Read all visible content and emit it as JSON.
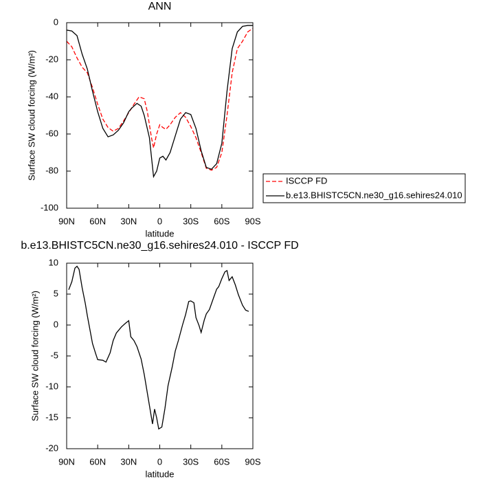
{
  "chart_data": [
    {
      "type": "line",
      "title": "ANN",
      "xlabel": "latitude",
      "ylabel": "Surface SW cloud forcing (W/m²)",
      "xlim": [
        90,
        -90
      ],
      "ylim": [
        -100,
        0
      ],
      "xticks": [
        {
          "value": 90,
          "label": "90N"
        },
        {
          "value": 60,
          "label": "60N"
        },
        {
          "value": 30,
          "label": "30N"
        },
        0,
        {
          "value": -30,
          "label": "30S"
        },
        {
          "value": -60,
          "label": "60S"
        },
        {
          "value": -90,
          "label": "90S"
        }
      ],
      "yticks": [
        -100,
        -80,
        -60,
        -40,
        -20,
        0
      ],
      "legend": "right",
      "series": [
        {
          "name": "ISCCP FD",
          "color": "#ff0000",
          "line_style": "dashed",
          "x": [
            90,
            85,
            80,
            75,
            70,
            65,
            60,
            55,
            50,
            45,
            40,
            35,
            30,
            25,
            20,
            15,
            12,
            8,
            6,
            3,
            0,
            -3,
            -6,
            -10,
            -15,
            -20,
            -25,
            -30,
            -35,
            -40,
            -45,
            -50,
            -55,
            -60,
            -65,
            -70,
            -75,
            -80,
            -85,
            -90
          ],
          "values": [
            -10,
            -13,
            -19,
            -24,
            -27,
            -35,
            -44,
            -52,
            -56.5,
            -58.5,
            -57,
            -53,
            -48.5,
            -44,
            -40,
            -41,
            -48,
            -62,
            -67.5,
            -60,
            -55,
            -56.5,
            -57.5,
            -55,
            -51,
            -48.5,
            -51,
            -56,
            -62,
            -70,
            -78.5,
            -79.5,
            -78,
            -70,
            -50,
            -27,
            -14,
            -10,
            -5,
            -3
          ]
        },
        {
          "name": "b.e13.BHISTC5CN.ne30_g16.sehires24.010",
          "color": "#000000",
          "line_style": "solid",
          "x": [
            90,
            85,
            80,
            75,
            70,
            65,
            60,
            55,
            50,
            45,
            40,
            35,
            30,
            27,
            22,
            18,
            15,
            10,
            6,
            3,
            0,
            -3,
            -6,
            -10,
            -15,
            -20,
            -25,
            -30,
            -35,
            -40,
            -45,
            -50,
            -55,
            -60,
            -65,
            -70,
            -75,
            -80,
            -85,
            -90
          ],
          "values": [
            -4,
            -4.5,
            -7,
            -17,
            -25,
            -37,
            -48,
            -57,
            -61.5,
            -60.5,
            -58,
            -54,
            -48,
            -46,
            -43.5,
            -45,
            -50,
            -62,
            -83,
            -80,
            -73,
            -72,
            -74,
            -70,
            -61,
            -52,
            -48.5,
            -49.5,
            -57,
            -69,
            -78,
            -79,
            -76,
            -65,
            -37,
            -14,
            -5,
            -2,
            -1.5,
            -1.5
          ]
        }
      ]
    },
    {
      "type": "line",
      "title": "b.e13.BHISTC5CN.ne30_g16.sehires24.010 - ISCCP FD",
      "xlabel": "latitude",
      "ylabel": "Surface SW cloud forcing (W/m²)",
      "xlim": [
        90,
        -90
      ],
      "ylim": [
        -20,
        10
      ],
      "xticks": [
        {
          "value": 90,
          "label": "90N"
        },
        {
          "value": 60,
          "label": "60N"
        },
        {
          "value": 30,
          "label": "30N"
        },
        0,
        {
          "value": -30,
          "label": "30S"
        },
        {
          "value": -60,
          "label": "60S"
        },
        {
          "value": -90,
          "label": "90S"
        }
      ],
      "yticks": [
        -20,
        -15,
        -10,
        -5,
        0,
        5,
        10
      ],
      "series": [
        {
          "color": "#000000",
          "line_style": "solid",
          "x": [
            88,
            85,
            82,
            80,
            78,
            75,
            72,
            70,
            65,
            62,
            60,
            55,
            52,
            48,
            45,
            42,
            40,
            37,
            33,
            30,
            28,
            25,
            22,
            18,
            15,
            12,
            10,
            7,
            5,
            3,
            1,
            -2,
            -5,
            -8,
            -12,
            -15,
            -18,
            -22,
            -25,
            -28,
            -30,
            -33,
            -35,
            -38,
            -40,
            -43,
            -45,
            -48,
            -52,
            -55,
            -57,
            -60,
            -63,
            -65,
            -67,
            -70,
            -73,
            -76,
            -80,
            -83,
            -86
          ],
          "values": [
            5.7,
            7,
            9.2,
            9.5,
            9,
            6,
            3.5,
            1.5,
            -3,
            -4.6,
            -5.6,
            -5.7,
            -6,
            -4.5,
            -2.5,
            -1.3,
            -0.9,
            -0.3,
            0.3,
            0.7,
            -1.9,
            -2.5,
            -3.5,
            -5.5,
            -8,
            -11,
            -13,
            -16,
            -13.6,
            -15,
            -16.8,
            -16.5,
            -13.5,
            -9.8,
            -6.8,
            -4.2,
            -2.5,
            0,
            1.7,
            3.8,
            3.9,
            3.6,
            1.2,
            -0.1,
            -1.2,
            0.8,
            1.8,
            2.5,
            4.4,
            5.8,
            6.2,
            7.5,
            8.6,
            8.8,
            7.2,
            7.8,
            6.5,
            4.9,
            3.2,
            2.4,
            2.2
          ]
        }
      ]
    }
  ]
}
